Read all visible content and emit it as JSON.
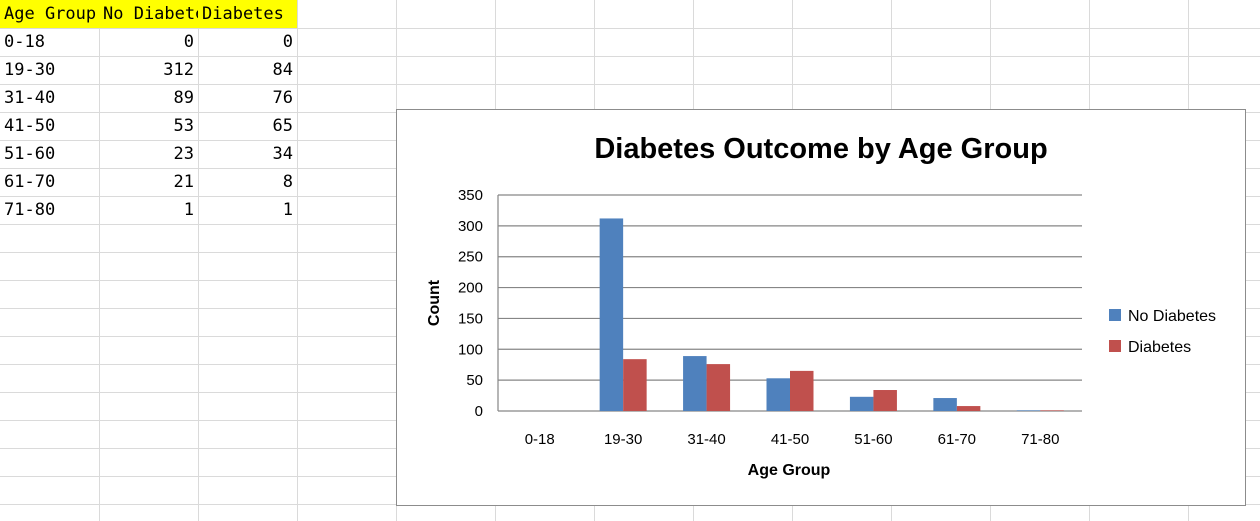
{
  "sheet": {
    "headers": [
      "Age Group",
      "No Diabetes",
      "Diabetes"
    ],
    "rows": [
      [
        "0-18",
        "0",
        "0"
      ],
      [
        "19-30",
        "312",
        "84"
      ],
      [
        "31-40",
        "89",
        "76"
      ],
      [
        "41-50",
        "53",
        "65"
      ],
      [
        "51-60",
        "23",
        "34"
      ],
      [
        "61-70",
        "21",
        "8"
      ],
      [
        "71-80",
        "1",
        "1"
      ]
    ],
    "header_color": "#ffff00",
    "gridline_color": "#dadada"
  },
  "chart_data": {
    "type": "bar",
    "title": "Diabetes Outcome by Age Group",
    "xlabel": "Age Group",
    "ylabel": "Count",
    "categories": [
      "0-18",
      "19-30",
      "31-40",
      "41-50",
      "51-60",
      "61-70",
      "71-80"
    ],
    "series": [
      {
        "name": "No Diabetes",
        "values": [
          0,
          312,
          89,
          53,
          23,
          21,
          1
        ],
        "color": "#4f81bd"
      },
      {
        "name": "Diabetes",
        "values": [
          0,
          84,
          76,
          65,
          34,
          8,
          1
        ],
        "color": "#c0504d"
      }
    ],
    "ylim": [
      0,
      350
    ],
    "yticks": [
      "0",
      "50",
      "100",
      "150",
      "200",
      "250",
      "300",
      "350"
    ],
    "grid": true,
    "legend_position": "right"
  }
}
